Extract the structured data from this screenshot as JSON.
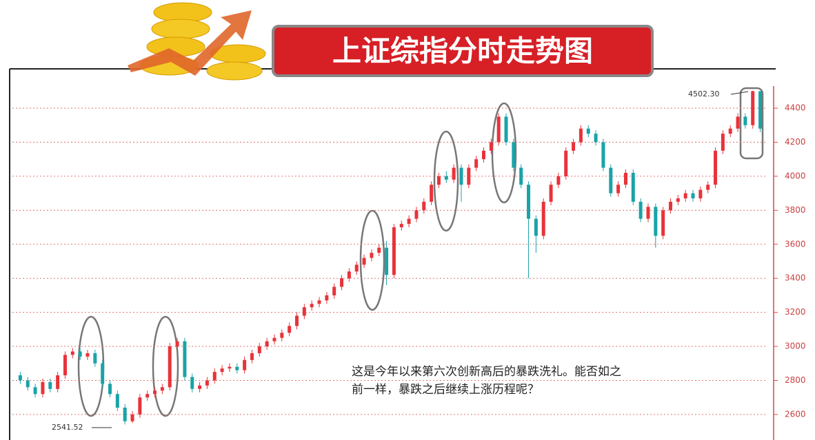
{
  "chart_data": {
    "type": "candlestick",
    "title": "上证综指分时走势图",
    "note_lines": [
      "这是今年以来第六次创新高后的暴跌洗礼。能否如之",
      "前一样，暴跌之后继续上涨历程呢？"
    ],
    "annotations": [
      "4502.30",
      "2541.52"
    ],
    "up_color": "#e8333a",
    "down_color": "#1aa3a8",
    "ylim": [
      2466,
      4631
    ],
    "yticks": [
      2600,
      2800,
      3000,
      3200,
      3400,
      3600,
      3800,
      4000,
      4200,
      4400
    ],
    "grid": true,
    "open": [
      2830,
      2800,
      2760,
      2720,
      2790,
      2750,
      2830,
      2950,
      2970,
      2940,
      2960,
      2900,
      2780,
      2720,
      2640,
      2560,
      2600,
      2700,
      2720,
      2740,
      2760,
      3000,
      3030,
      2820,
      2750,
      2770,
      2800,
      2850,
      2870,
      2880,
      2860,
      2920,
      2960,
      3000,
      3030,
      3050,
      3080,
      3120,
      3180,
      3230,
      3250,
      3270,
      3300,
      3350,
      3400,
      3440,
      3480,
      3520,
      3550,
      3580,
      3420,
      3700,
      3720,
      3750,
      3800,
      3850,
      3950,
      4000,
      3980,
      4050,
      3950,
      4050,
      4100,
      4150,
      4200,
      4350,
      4200,
      4050,
      3950,
      3750,
      3650,
      3850,
      3950,
      4000,
      4150,
      4200,
      4280,
      4250,
      4200,
      4050,
      3900,
      3950,
      4020,
      3850,
      3750,
      3820,
      3650,
      3800,
      3850,
      3870,
      3900,
      3870,
      3920,
      3950,
      4150,
      4250,
      4280,
      4350,
      4300,
      4500
    ],
    "high": [
      2850,
      2820,
      2780,
      2810,
      2810,
      2850,
      2970,
      2990,
      2990,
      2980,
      2980,
      2920,
      2800,
      2740,
      2660,
      2620,
      2720,
      2740,
      2760,
      2780,
      3020,
      3050,
      3050,
      2840,
      2790,
      2820,
      2870,
      2890,
      2900,
      2900,
      2940,
      2980,
      3020,
      3050,
      3070,
      3100,
      3140,
      3200,
      3250,
      3270,
      3290,
      3320,
      3370,
      3420,
      3460,
      3500,
      3540,
      3570,
      3600,
      3620,
      3720,
      3740,
      3770,
      3820,
      3870,
      3970,
      4020,
      4030,
      4070,
      4070,
      4070,
      4120,
      4170,
      4220,
      4370,
      4370,
      4220,
      4070,
      3970,
      3770,
      3870,
      3970,
      4020,
      4170,
      4220,
      4300,
      4300,
      4270,
      4220,
      4070,
      3970,
      4040,
      4040,
      3870,
      3840,
      3840,
      3820,
      3870,
      3890,
      3920,
      3920,
      3940,
      3970,
      4170,
      4270,
      4300,
      4370,
      4370,
      4502.3,
      4500
    ],
    "low": [
      2780,
      2740,
      2700,
      2700,
      2730,
      2730,
      2810,
      2930,
      2920,
      2920,
      2880,
      2760,
      2700,
      2620,
      2541.52,
      2550,
      2580,
      2680,
      2700,
      2720,
      2740,
      2980,
      2800,
      2730,
      2730,
      2750,
      2780,
      2830,
      2850,
      2840,
      2840,
      2900,
      2940,
      2980,
      3010,
      3030,
      3060,
      3100,
      3160,
      3210,
      3230,
      3250,
      3280,
      3330,
      3380,
      3420,
      3460,
      3500,
      3530,
      3360,
      3400,
      3680,
      3700,
      3730,
      3780,
      3830,
      3930,
      3960,
      3960,
      3850,
      3930,
      4030,
      4080,
      4130,
      4180,
      4180,
      4030,
      3930,
      3400,
      3550,
      3630,
      3830,
      3930,
      3980,
      4130,
      4180,
      4230,
      4180,
      4030,
      3880,
      3880,
      3930,
      3830,
      3730,
      3730,
      3580,
      3630,
      3780,
      3830,
      3850,
      3850,
      3850,
      3900,
      3930,
      4130,
      4230,
      4260,
      4280,
      4280,
      4260
    ],
    "close": [
      2800,
      2760,
      2720,
      2790,
      2750,
      2830,
      2950,
      2970,
      2940,
      2960,
      2900,
      2780,
      2720,
      2640,
      2560,
      2600,
      2700,
      2720,
      2740,
      2760,
      3000,
      3030,
      2820,
      2750,
      2770,
      2800,
      2850,
      2870,
      2880,
      2860,
      2920,
      2960,
      3000,
      3030,
      3050,
      3080,
      3120,
      3180,
      3230,
      3250,
      3270,
      3300,
      3350,
      3400,
      3440,
      3480,
      3520,
      3550,
      3580,
      3420,
      3700,
      3720,
      3750,
      3800,
      3850,
      3950,
      4000,
      3980,
      4050,
      3950,
      4050,
      4100,
      4150,
      4200,
      4350,
      4200,
      4050,
      3950,
      3750,
      3650,
      3850,
      3950,
      4000,
      4150,
      4200,
      4280,
      4250,
      4200,
      4050,
      3900,
      3950,
      4020,
      3850,
      3750,
      3820,
      3650,
      3800,
      3850,
      3870,
      3900,
      3870,
      3920,
      3950,
      4150,
      4250,
      4280,
      4350,
      4300,
      4500,
      4280
    ]
  }
}
